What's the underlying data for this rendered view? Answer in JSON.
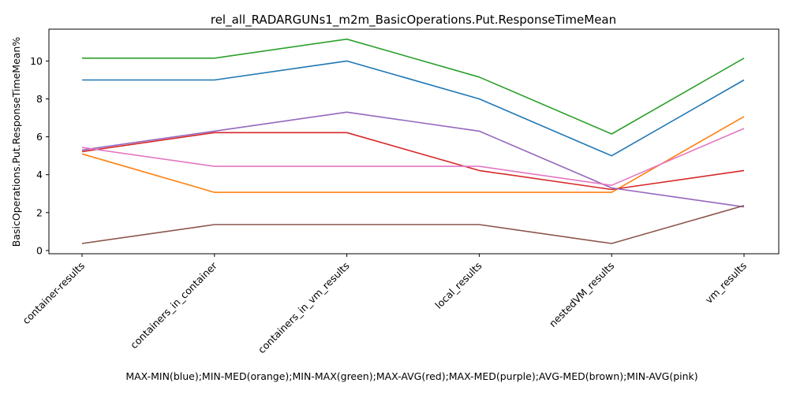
{
  "chart_data": {
    "type": "line",
    "title": "rel_all_RADARGUNs1_m2m_BasicOperations.Put.ResponseTimeMean",
    "xlabel": "MAX-MIN(blue);MIN-MED(orange);MIN-MAX(green);MAX-AVG(red);MAX-MED(purple);AVG-MED(brown);MIN-AVG(pink)",
    "ylabel": "BasicOperations.Put.ResponseTimeMean%",
    "categories": [
      "container-results",
      "containers_in_container",
      "containers_in_vm_results",
      "local_results",
      "nestedVM_results",
      "vm_results"
    ],
    "yticks": [
      "0",
      "2",
      "4",
      "6",
      "8",
      "10"
    ],
    "ylim": [
      -0.17,
      11.68
    ],
    "grid": false,
    "series": [
      {
        "color": "#1f77b4",
        "values": [
          9.0,
          9.0,
          10.0,
          8.0,
          5.0,
          9.0
        ]
      },
      {
        "color": "#ff7f0e",
        "values": [
          5.1,
          3.07,
          3.07,
          3.07,
          3.07,
          7.07
        ]
      },
      {
        "color": "#2ca02c",
        "values": [
          10.15,
          10.15,
          11.15,
          9.15,
          6.15,
          10.15
        ]
      },
      {
        "color": "#d62728",
        "values": [
          5.22,
          6.22,
          6.22,
          4.22,
          3.22,
          4.22
        ]
      },
      {
        "color": "#9467bd",
        "values": [
          5.3,
          6.3,
          7.3,
          6.3,
          3.3,
          2.3
        ]
      },
      {
        "color": "#8c564b",
        "values": [
          0.37,
          1.37,
          1.37,
          1.37,
          0.37,
          2.37
        ]
      },
      {
        "color": "#e377c2",
        "values": [
          5.44,
          4.44,
          4.44,
          4.44,
          3.44,
          6.44
        ]
      }
    ]
  }
}
